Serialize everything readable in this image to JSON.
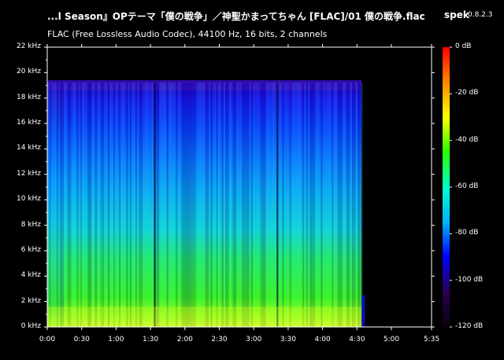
{
  "header": {
    "title": "...l Season』OPテーマ「僕の戦争」／神聖かまってちゃん [FLAC]/01 僕の戦争.flac",
    "app_name": "spek",
    "app_version": "0.8.2.3",
    "file_info": "FLAC (Free Lossless Audio Codec), 44100 Hz, 16 bits, 2 channels"
  },
  "colors": {
    "background": "#000000",
    "text": "#ffffff",
    "colormap": [
      "#0a0010",
      "#2a0050",
      "#0000ff",
      "#00b4ff",
      "#00ffc8",
      "#28ff00",
      "#ffff00",
      "#ff8800",
      "#ff0000"
    ]
  },
  "chart_data": {
    "type": "heatmap",
    "x_axis": {
      "ticks": [
        "0:00",
        "0:30",
        "1:00",
        "1:30",
        "2:00",
        "2:30",
        "3:00",
        "3:30",
        "4:00",
        "4:30",
        "5:00",
        "5:35"
      ],
      "tick_seconds": [
        0,
        30,
        60,
        90,
        120,
        150,
        180,
        210,
        240,
        270,
        300,
        335
      ],
      "range_seconds": [
        0,
        335
      ],
      "audio_end_seconds": 274
    },
    "y_axis": {
      "ticks": [
        "0 kHz",
        "2 kHz",
        "4 kHz",
        "6 kHz",
        "8 kHz",
        "10 kHz",
        "12 kHz",
        "14 kHz",
        "16 kHz",
        "18 kHz",
        "20 kHz",
        "22 kHz"
      ],
      "range_khz": [
        0,
        22
      ],
      "content_ceiling_khz": 19.2
    },
    "colorbar": {
      "ticks": [
        "0 dB",
        "-20 dB",
        "-40 dB",
        "-60 dB",
        "-80 dB",
        "-100 dB",
        "-120 dB"
      ],
      "range_db": [
        -120,
        0
      ]
    }
  }
}
